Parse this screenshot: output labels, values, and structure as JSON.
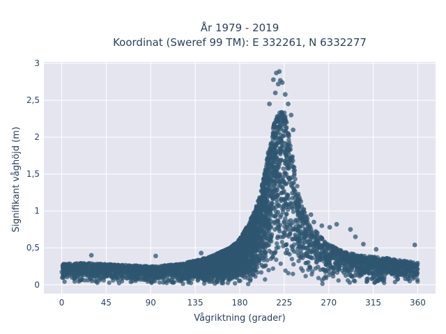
{
  "chart_data": {
    "type": "scatter",
    "title_line1": "År 1979 - 2019",
    "title_line2": "Koordinat (Sweref 99 TM): E 332261, N 6332277",
    "xlabel": "Vågriktning (grader)",
    "ylabel": "Signifikant våghöjd (m)",
    "xlim": [
      -18,
      378
    ],
    "ylim": [
      -0.12,
      3.02
    ],
    "xticks": [
      0,
      45,
      90,
      135,
      180,
      225,
      270,
      315,
      360
    ],
    "xtick_labels": [
      "0",
      "45",
      "90",
      "135",
      "180",
      "225",
      "270",
      "315",
      "360"
    ],
    "yticks": [
      0,
      0.5,
      1,
      1.5,
      2,
      2.5,
      3
    ],
    "ytick_labels": [
      "0",
      "0,5",
      "1",
      "1,5",
      "2",
      "2,5",
      "3"
    ],
    "grid": true,
    "legend": "none",
    "colors": {
      "marker": "#2f5670",
      "plot_bg": "#e5e5f0",
      "grid": "#ffffff",
      "text": "#2a3f5f"
    },
    "envelope": {
      "direction": [
        0,
        20,
        45,
        90,
        120,
        150,
        170,
        180,
        190,
        200,
        205,
        210,
        215,
        220,
        225,
        230,
        235,
        240,
        250,
        260,
        270,
        285,
        300,
        315,
        330,
        345,
        360
      ],
      "typical_max": [
        0.28,
        0.3,
        0.28,
        0.25,
        0.28,
        0.38,
        0.5,
        0.62,
        0.85,
        1.2,
        1.5,
        1.9,
        2.2,
        2.35,
        2.35,
        2.05,
        1.6,
        1.2,
        0.85,
        0.68,
        0.55,
        0.45,
        0.4,
        0.38,
        0.36,
        0.33,
        0.3
      ]
    },
    "outliers": [
      {
        "x": 217,
        "y": 2.87
      },
      {
        "x": 220,
        "y": 2.89
      },
      {
        "x": 214,
        "y": 2.78
      },
      {
        "x": 221,
        "y": 2.77
      },
      {
        "x": 223,
        "y": 2.74
      },
      {
        "x": 219,
        "y": 2.72
      },
      {
        "x": 216,
        "y": 2.6
      },
      {
        "x": 226,
        "y": 2.58
      },
      {
        "x": 210,
        "y": 2.45
      },
      {
        "x": 229,
        "y": 2.45
      },
      {
        "x": 232,
        "y": 2.3
      },
      {
        "x": 234,
        "y": 2.1
      },
      {
        "x": 252,
        "y": 0.95
      },
      {
        "x": 255,
        "y": 0.85
      },
      {
        "x": 263,
        "y": 0.8
      },
      {
        "x": 271,
        "y": 0.78
      },
      {
        "x": 278,
        "y": 0.82
      },
      {
        "x": 292,
        "y": 0.75
      },
      {
        "x": 297,
        "y": 0.65
      },
      {
        "x": 305,
        "y": 0.55
      },
      {
        "x": 318,
        "y": 0.48
      },
      {
        "x": 357,
        "y": 0.54
      },
      {
        "x": 30,
        "y": 0.4
      },
      {
        "x": 95,
        "y": 0.39
      },
      {
        "x": 141,
        "y": 0.43
      }
    ]
  }
}
